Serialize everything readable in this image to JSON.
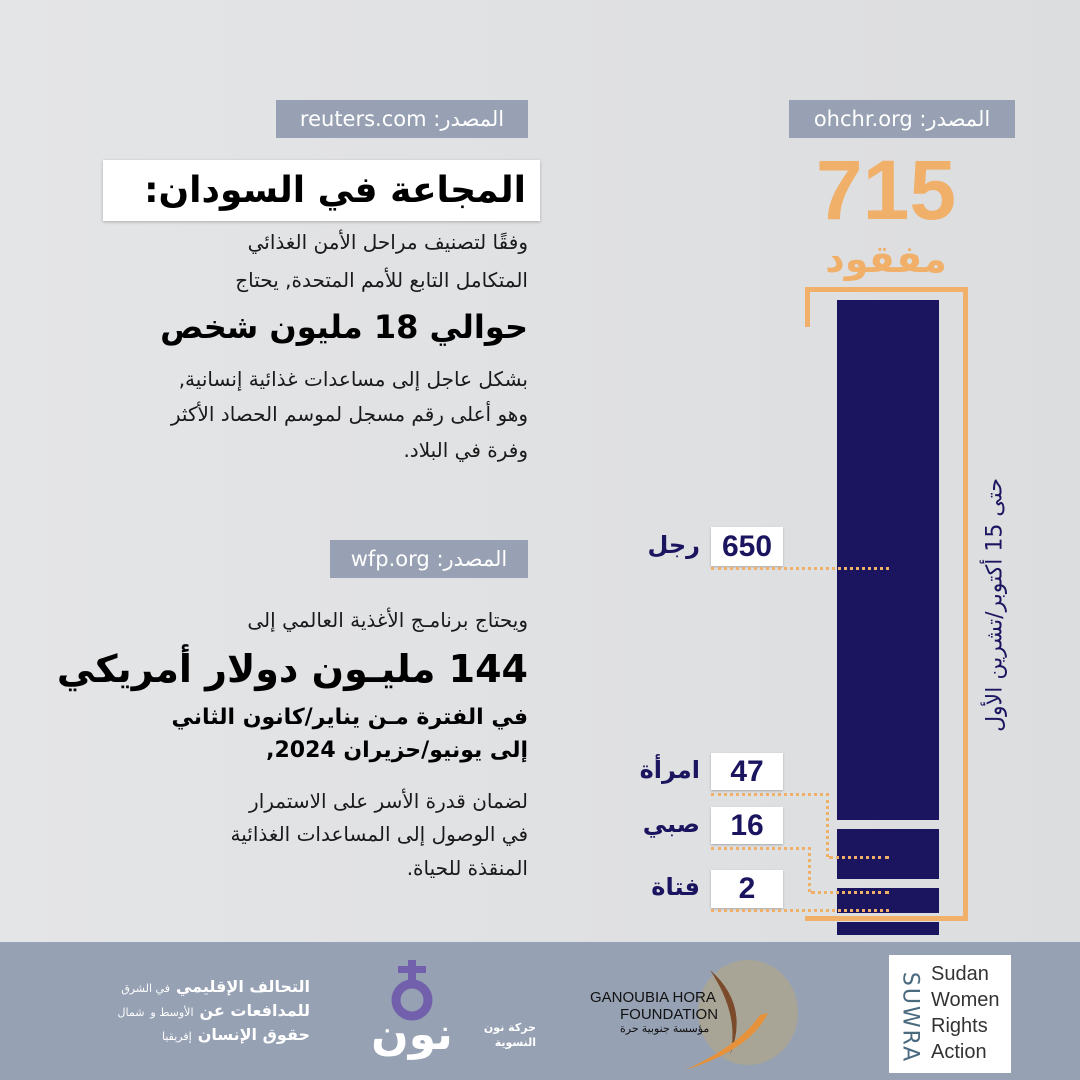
{
  "right_panel": {
    "source_badge": "المصدر: ohchr.org",
    "total": "715",
    "total_label": "مفقود",
    "date_note": "حتى 15 أكتوبر/تشرين الأول",
    "accent_color": "#f0b06a",
    "bar_color": "#1b1560"
  },
  "chart_data": {
    "type": "bar",
    "title": "715 مفقود",
    "categories": [
      "رجل",
      "امرأة",
      "صبي",
      "فتاة"
    ],
    "values": [
      650,
      47,
      16,
      2
    ],
    "total": 715,
    "note": "حتى 15 أكتوبر/تشرين الأول"
  },
  "left_top": {
    "source_badge": "المصدر: reuters.com",
    "title": "المجاعة في السودان:",
    "line1": "وفقًا لتصنيف مراحل الأمن الغذائي",
    "line2": "المتكامل التابع للأمم المتحدة, يحتاج",
    "highlight": "حوالي 18 مليون شخص",
    "line3": "بشكل عاجل إلى مساعدات غذائية إنسانية,",
    "line4": "وهو أعلى رقم مسجل لموسم الحصاد الأكثر",
    "line5": "وفرة في البلاد."
  },
  "left_bottom": {
    "source_badge": "المصدر: wfp.org",
    "line1": "ويحتاج برنامـج الأغذية العالمي إلى",
    "highlight": "144 مليـون دولار أمريكي",
    "bold1": "في الفترة مـن يناير/كانون الثاني",
    "bold2": "إلى يونيو/حزيران 2024,",
    "line2": "لضمان قدرة الأسر على الاستمرار",
    "line3": "في الوصول إلى المساعدات الغذائية",
    "line4": "المنقذة للحياة."
  },
  "footer": {
    "logo1_line1": "التحالف الإقليمي",
    "logo1_line2": "للمدافعات عن",
    "logo1_line3": "حقوق الإنسان",
    "logo1_side1": "في الشرق",
    "logo1_side2": "الأوسط و",
    "logo1_side3": "شمال",
    "logo1_side4": "إفريقيا",
    "logo2_mark": "نون",
    "logo2_line1": "حركة نون",
    "logo2_line2": "النسوية",
    "logo3_line1": "GANOUBIA HORA",
    "logo3_line2": "FOUNDATION",
    "logo3_line3": "مؤسسة جنوبية حرة",
    "logo4_side": "SUWRA",
    "logo4_lines": [
      "Sudan",
      "Women",
      "Rights",
      "Action"
    ]
  }
}
